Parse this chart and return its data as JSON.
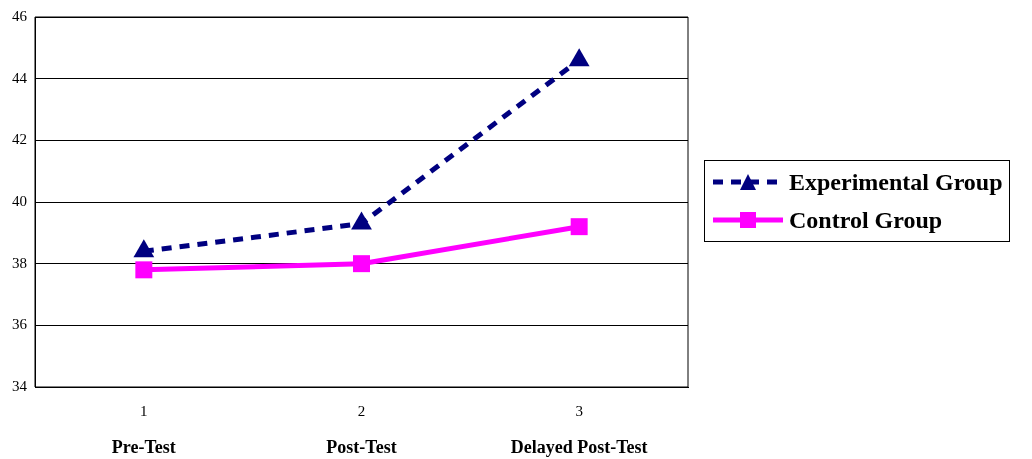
{
  "chart_data": {
    "type": "line",
    "categories": [
      "1",
      "2",
      "3"
    ],
    "series": [
      {
        "name": "Experimental Group",
        "color": "#000080",
        "values": [
          38.4,
          39.3,
          44.6
        ],
        "marker": "triangle",
        "line_style": "dashed"
      },
      {
        "name": "Control Group",
        "color": "#ff00ff",
        "values": [
          37.8,
          38.0,
          39.2
        ],
        "marker": "square",
        "line_style": "solid"
      }
    ],
    "annotations": [
      "Pre-Test",
      "Post-Test",
      "Delayed Post-Test"
    ],
    "ylim": [
      34,
      46
    ],
    "yticks": [
      34,
      36,
      38,
      40,
      42,
      44,
      46
    ],
    "grid": "y",
    "legend": "right"
  }
}
